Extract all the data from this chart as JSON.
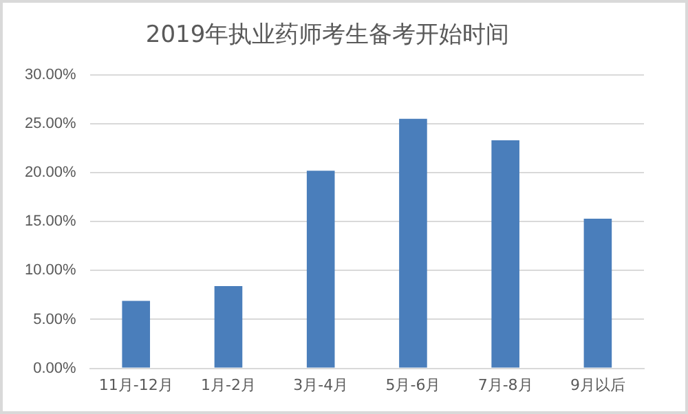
{
  "chart_data": {
    "type": "bar",
    "title": "2019年执业药师考生备考开始时间",
    "categories": [
      "11月-12月",
      "1月-2月",
      "3月-4月",
      "5月-6月",
      "7月-8月",
      "9月以后"
    ],
    "values": [
      6.9,
      8.4,
      20.2,
      25.5,
      23.3,
      15.3
    ],
    "color": "#4a7ebb",
    "ylim": [
      0,
      30
    ],
    "yticks": [
      {
        "value": 0,
        "label": "0.00%"
      },
      {
        "value": 5,
        "label": "5.00%"
      },
      {
        "value": 10,
        "label": "10.00%"
      },
      {
        "value": 15,
        "label": "15.00%"
      },
      {
        "value": 20,
        "label": "20.00%"
      },
      {
        "value": 25,
        "label": "25.00%"
      },
      {
        "value": 30,
        "label": "30.00%"
      }
    ],
    "grid": "y",
    "legend": false
  }
}
